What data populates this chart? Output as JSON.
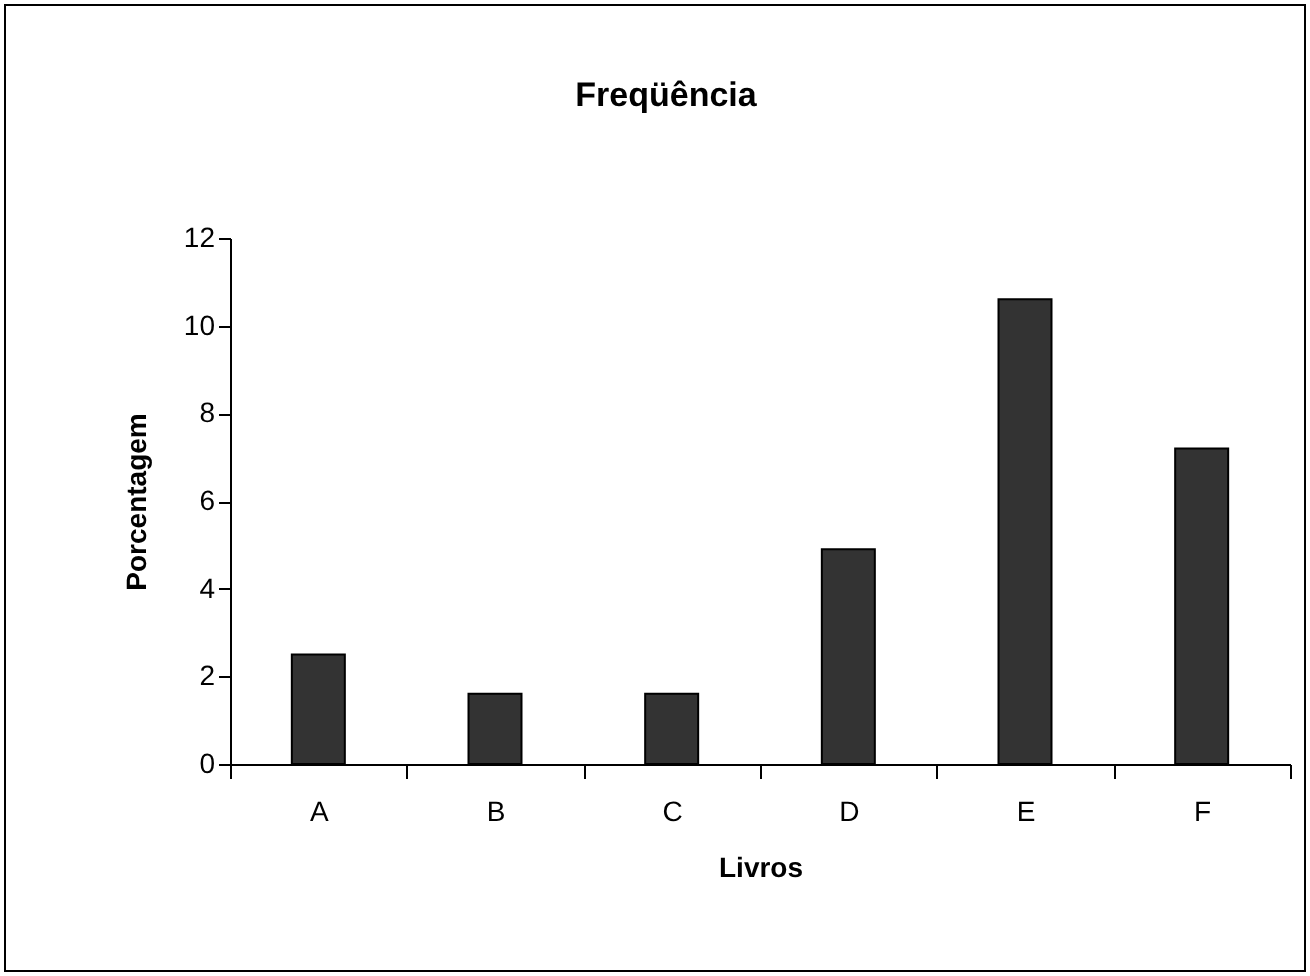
{
  "chart_data": {
    "type": "bar",
    "title": "Freqüência",
    "xlabel": "Livros",
    "ylabel": "Porcentagem",
    "categories": [
      "A",
      "B",
      "C",
      "D",
      "E",
      "F"
    ],
    "values": [
      2.5,
      1.6,
      1.6,
      4.9,
      10.6,
      7.2
    ],
    "color": "#333333",
    "ylim": [
      0,
      12
    ],
    "yticks": [
      0,
      2,
      4,
      6,
      8,
      10,
      12
    ],
    "grid": false
  }
}
